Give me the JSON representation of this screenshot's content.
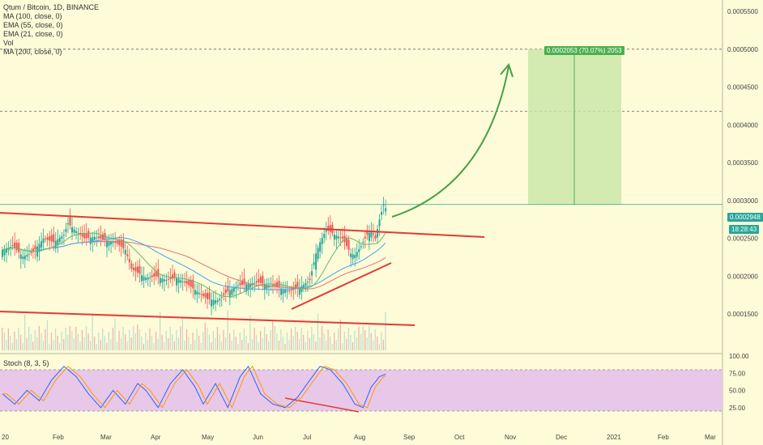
{
  "chart": {
    "title": "Qtum / Bitcoin, 1D, BINANCE",
    "indicators": [
      "MA (100, close, 0)",
      "EMA (55, close, 0)",
      "EMA (21, close, 0)",
      "Vol",
      "MA (200, close, 0)"
    ],
    "stoch_label": "Stoch (8, 3, 5)",
    "target_label": "0.0002053 (70.07%) 2053",
    "current_price": "0.0002948",
    "countdown": "18:28:43"
  },
  "chart_data": {
    "type": "candlestick",
    "symbol": "Qtum / Bitcoin",
    "interval": "1D",
    "exchange": "BINANCE",
    "y_axis_ticks": [
      "0.0005500",
      "0.0005000",
      "0.0004500",
      "0.0004000",
      "0.0003500",
      "0.0003000",
      "0.0002500",
      "0.0002000",
      "0.0001500"
    ],
    "y_values": [
      0.00055,
      0.0005,
      0.00045,
      0.0004,
      0.00035,
      0.0003,
      0.00025,
      0.0002,
      0.00015
    ],
    "ylim": [
      0.0001,
      0.000565
    ],
    "x_axis_ticks": [
      "20",
      "Feb",
      "Mar",
      "Apr",
      "May",
      "Jun",
      "Jul",
      "Aug",
      "Sep",
      "Oct",
      "Nov",
      "Dec",
      "2021",
      "Feb",
      "Mar"
    ],
    "stoch_ticks": [
      "100.00",
      "75.00",
      "50.00",
      "25.00"
    ],
    "stoch_values": [
      100,
      75,
      50,
      25
    ],
    "current_price": 0.0002948,
    "target_price": 0.0005,
    "target_change": "0.0002053 (70.07%) 2053",
    "horizontal_levels": [
      0.0005,
      0.000418
    ],
    "price_path": [
      [
        0,
        0.000235
      ],
      [
        5,
        0.00024
      ],
      [
        10,
        0.000226
      ],
      [
        15,
        0.000232
      ],
      [
        20,
        0.00025
      ],
      [
        25,
        0.000245
      ],
      [
        30,
        0.000255
      ],
      [
        32,
        0.00027
      ],
      [
        35,
        0.000262
      ],
      [
        40,
        0.00025
      ],
      [
        45,
        0.000252
      ],
      [
        50,
        0.000248
      ],
      [
        55,
        0.000245
      ],
      [
        60,
        0.000235
      ],
      [
        63,
        0.00021
      ],
      [
        66,
        0.000205
      ],
      [
        70,
        0.000198
      ],
      [
        75,
        0.0002
      ],
      [
        80,
        0.000195
      ],
      [
        85,
        0.000198
      ],
      [
        90,
        0.00019
      ],
      [
        95,
        0.00018
      ],
      [
        100,
        0.00017
      ],
      [
        105,
        0.000168
      ],
      [
        110,
        0.00018
      ],
      [
        115,
        0.000188
      ],
      [
        120,
        0.00019
      ],
      [
        125,
        0.000192
      ],
      [
        130,
        0.000188
      ],
      [
        135,
        0.000185
      ],
      [
        140,
        0.00018
      ],
      [
        145,
        0.000185
      ],
      [
        150,
        0.000195
      ],
      [
        153,
        0.00023
      ],
      [
        155,
        0.000245
      ],
      [
        158,
        0.000262
      ],
      [
        162,
        0.000255
      ],
      [
        166,
        0.00025
      ],
      [
        170,
        0.00023
      ],
      [
        172,
        0.000228
      ],
      [
        175,
        0.00024
      ],
      [
        178,
        0.000255
      ],
      [
        180,
        0.00026
      ],
      [
        182,
        0.00025
      ],
      [
        184,
        0.000275
      ],
      [
        186,
        0.000295
      ],
      [
        188,
        0.000285
      ]
    ],
    "stoch_path": [
      [
        0,
        45
      ],
      [
        6,
        30
      ],
      [
        12,
        50
      ],
      [
        18,
        35
      ],
      [
        24,
        65
      ],
      [
        30,
        85
      ],
      [
        36,
        70
      ],
      [
        42,
        45
      ],
      [
        48,
        25
      ],
      [
        54,
        50
      ],
      [
        60,
        30
      ],
      [
        66,
        60
      ],
      [
        70,
        50
      ],
      [
        76,
        25
      ],
      [
        82,
        60
      ],
      [
        88,
        80
      ],
      [
        94,
        55
      ],
      [
        98,
        30
      ],
      [
        104,
        60
      ],
      [
        110,
        25
      ],
      [
        116,
        70
      ],
      [
        120,
        85
      ],
      [
        126,
        45
      ],
      [
        132,
        30
      ],
      [
        138,
        25
      ],
      [
        144,
        40
      ],
      [
        150,
        65
      ],
      [
        155,
        85
      ],
      [
        160,
        80
      ],
      [
        166,
        60
      ],
      [
        172,
        30
      ],
      [
        176,
        25
      ],
      [
        180,
        55
      ],
      [
        184,
        70
      ],
      [
        188,
        75
      ]
    ]
  }
}
